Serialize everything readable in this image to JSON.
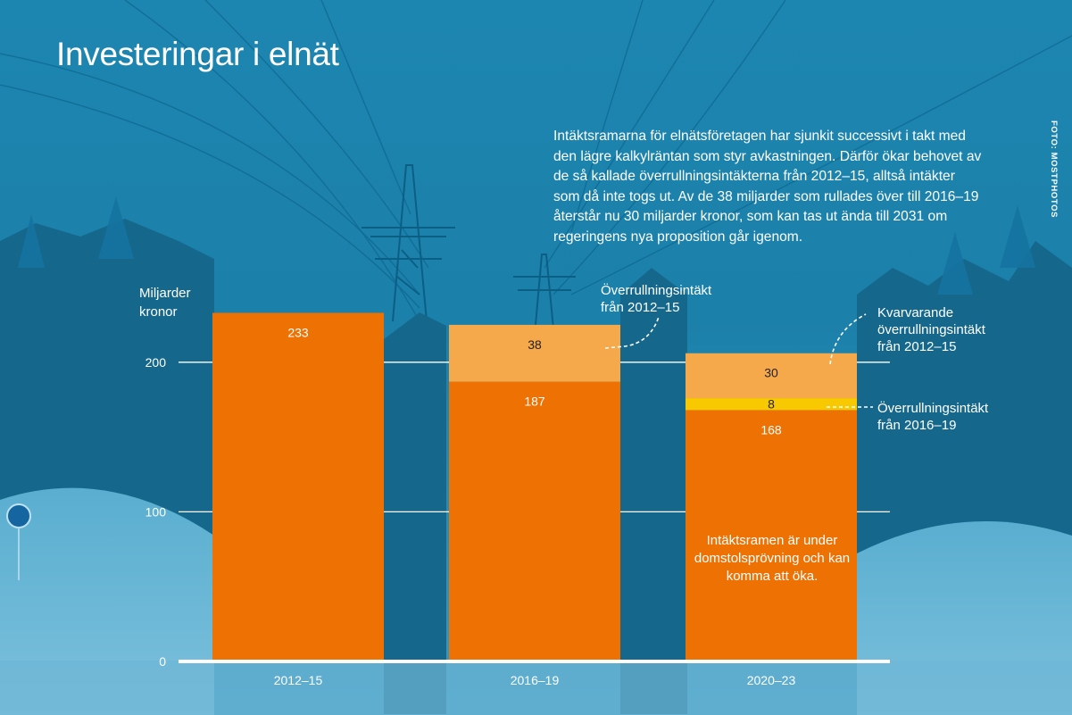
{
  "header": {
    "title": "Investeringar i elnät",
    "intro": "Intäktsramarna för elnätsföretagen har sjunkit successivt i takt med den lägre kalkylräntan som styr avkastningen. Därför ökar behovet av de så kallade överrullningsintäkterna från 2012–15, alltså intäkter som då inte togs ut. Av de 38 miljarder som rullades över till 2016–19 återstår nu 30 miljarder kronor, som kan tas ut ända till 2031 om regeringens nya proposition går igenom.",
    "credit": "FOTO: MOSTPHOTOS"
  },
  "colors": {
    "background": "#1a7fa8",
    "base_bar": "#ee7203",
    "rollover_2012": "#f5a94a",
    "rollover_2016": "#f8c800",
    "gridline": "#ffffff"
  },
  "chart_data": {
    "type": "bar",
    "stacked": true,
    "ylabel": "Miljarder kronor",
    "ylim": [
      0,
      240
    ],
    "yticks": [
      0,
      100,
      200
    ],
    "grid": true,
    "categories": [
      "2012–15",
      "2016–19",
      "2020–23"
    ],
    "series": [
      {
        "key": "base",
        "values": [
          233,
          187,
          168
        ],
        "color": "#ee7203"
      },
      {
        "key": "rollover_2016",
        "values": [
          null,
          null,
          8
        ],
        "color": "#f8c800"
      },
      {
        "key": "rollover_2012",
        "values": [
          null,
          38,
          30
        ],
        "color": "#f5a94a"
      }
    ],
    "annotations": {
      "rollover_2012_label": "Överrullningsintäkt\nfrån 2012–15",
      "remaining_label": "Kvarvarande\növerrullningsintäkt\nfrån 2012–15",
      "rollover_2016_label": "Överrullningsintäkt\nfrån 2016–19",
      "note": "Intäktsramen är under domstolsprövning och kan komma att öka."
    }
  }
}
